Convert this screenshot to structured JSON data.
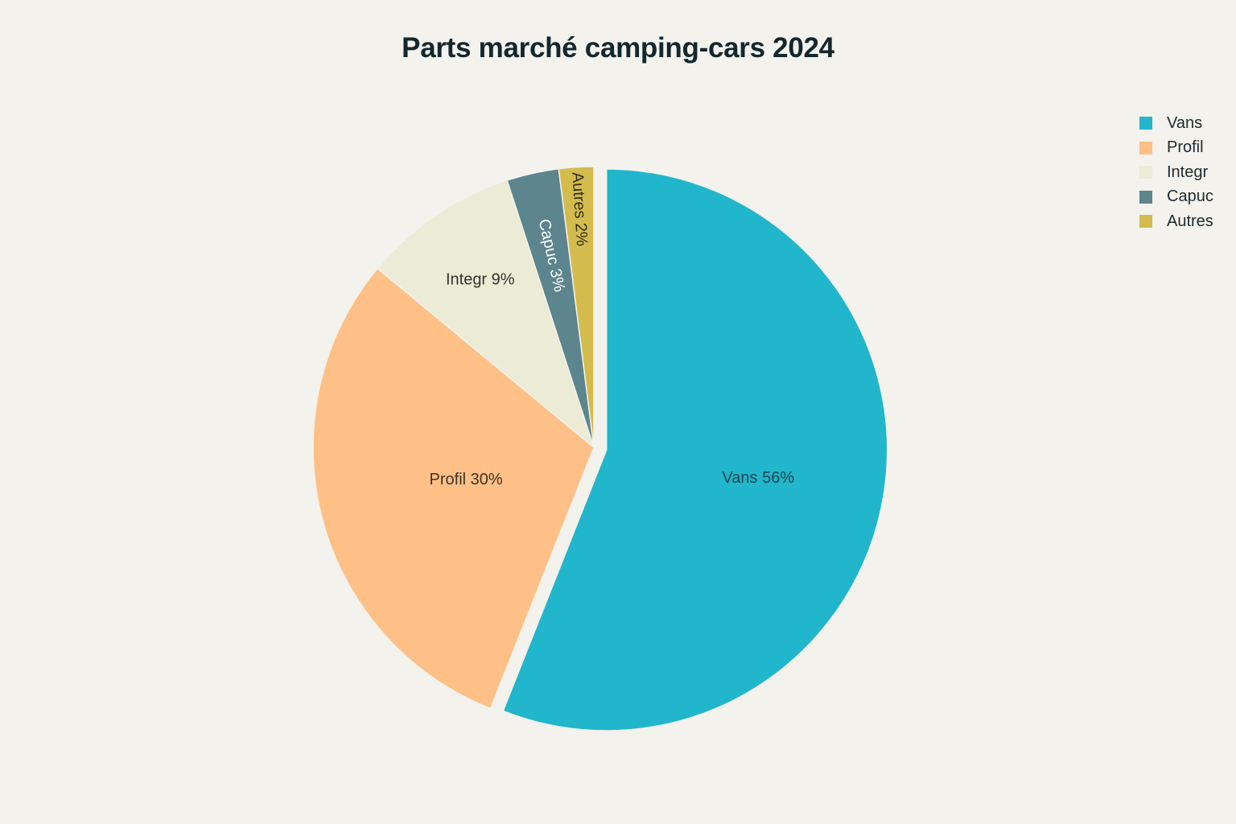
{
  "title": "Parts marché camping-cars 2024",
  "legend": [
    {
      "label": "Vans",
      "color": "#21b6cc"
    },
    {
      "label": "Profil",
      "color": "#ffc087"
    },
    {
      "label": "Integr",
      "color": "#ebebd6"
    },
    {
      "label": "Capuc",
      "color": "#5c858d"
    },
    {
      "label": "Autres",
      "color": "#d3bb4e"
    }
  ],
  "slice_labels": {
    "vans": "Vans 56%",
    "profil": "Profil 30%",
    "integr": "Integr 9%",
    "capuc": "Capuc 3%",
    "autres": "Autres 2%"
  },
  "chart_data": {
    "type": "pie",
    "title": "Parts marché camping-cars 2024",
    "categories": [
      "Vans",
      "Profil",
      "Integr",
      "Capuc",
      "Autres"
    ],
    "values": [
      56,
      30,
      9,
      3,
      2
    ],
    "unit": "%",
    "colors": [
      "#21b6cc",
      "#ffc087",
      "#ebebd6",
      "#5c858d",
      "#d3bb4e"
    ],
    "exploded": [
      "Vans"
    ],
    "start_angle": "12 o'clock, clockwise",
    "legend_position": "top-right"
  }
}
